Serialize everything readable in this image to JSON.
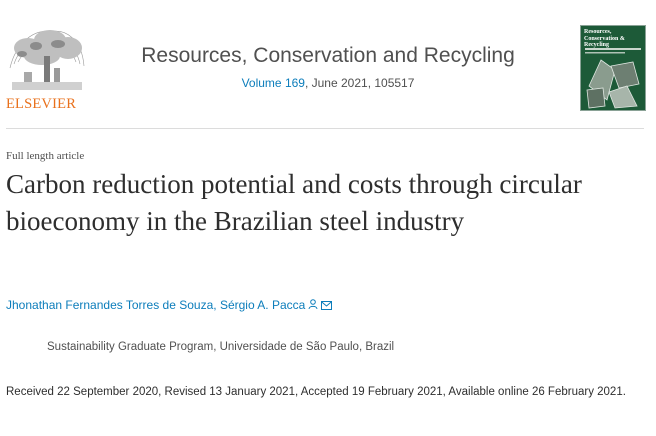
{
  "header": {
    "publisher_logo_text": "ELSEVIER",
    "journal_title": "Resources, Conservation and Recycling",
    "volume_link": "Volume 169",
    "issue_rest": ", June 2021, 105517",
    "cover_title": "Resources, Conservation & Recycling"
  },
  "article": {
    "type": "Full length article",
    "title": "Carbon reduction potential and costs through circular bioeconomy in the Brazilian steel industry",
    "authors": [
      {
        "name": "Jhonathan Fernandes Torres de Souza"
      },
      {
        "name": "Sérgio A. Pacca"
      }
    ],
    "author_separator": ", ",
    "author_icons": [
      "person-icon",
      "envelope-icon"
    ],
    "affiliation": "Sustainability Graduate Program, Universidade de São Paulo, Brazil",
    "history": "Received 22 September 2020, Revised 13 January 2021, Accepted 19 February 2021, Available online 26 February 2021."
  },
  "colors": {
    "link": "#0c7dbb",
    "elsevier_orange": "#e9711c",
    "text": "#2e2e2e",
    "cover_green": "#1d5a38"
  }
}
